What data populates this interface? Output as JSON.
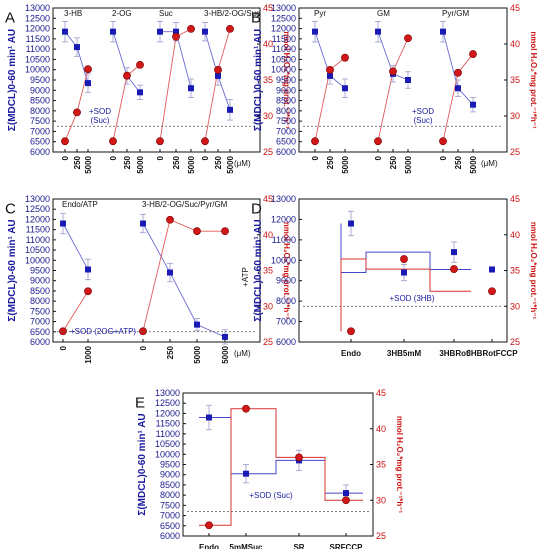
{
  "style": {
    "blue": "#1a1ab4",
    "red": "#d01818",
    "frame": "#111111",
    "ref_line": "#555555"
  },
  "axes_text": {
    "left_ylabel": "Σ(MDCL)0-60 min¹ AU",
    "right_ylabel": "nmol H₂O₂*mg prot.⁻¹*h⁻¹",
    "unit_um": "(μM)"
  },
  "chart_data": [
    {
      "type": "line",
      "panel": "A",
      "left_ylim": [
        6000,
        13000
      ],
      "left_ticks": [
        6000,
        6500,
        7000,
        7500,
        8000,
        8500,
        9000,
        9500,
        10000,
        10500,
        11000,
        11500,
        12000,
        12500,
        13000
      ],
      "right_ylim": [
        25,
        45
      ],
      "right_ticks": [
        25,
        30,
        35,
        40,
        45
      ],
      "groups": [
        {
          "label": "3-HB",
          "x": [
            "0",
            "250",
            "5000"
          ],
          "mdcl": [
            11850,
            11100,
            9350
          ],
          "mdcl_err": [
            500,
            450,
            450
          ],
          "h2o2": [
            26.5,
            30.5,
            36.5
          ]
        },
        {
          "label": "2-OG",
          "x": [
            "0",
            "250",
            "5000"
          ],
          "mdcl": [
            11850,
            9700,
            8900
          ],
          "mdcl_err": [
            500,
            400,
            350
          ],
          "h2o2": [
            26.5,
            35.6,
            37.1
          ]
        },
        {
          "label": "Suc",
          "x": [
            "0",
            "250",
            "5000"
          ],
          "mdcl": [
            11850,
            11850,
            9100
          ],
          "mdcl_err": [
            500,
            450,
            450
          ],
          "h2o2": [
            26.5,
            41.0,
            42.1
          ]
        },
        {
          "label": "3-HB/2-OG/Suc",
          "x": [
            "0",
            "250",
            "5000"
          ],
          "mdcl": [
            11850,
            9700,
            8050
          ],
          "mdcl_err": [
            450,
            450,
            500
          ],
          "h2o2": [
            26.5,
            36.4,
            42.1
          ]
        }
      ],
      "ref": {
        "value": 7250,
        "label": "+SOD\n(Suc)"
      },
      "unit_label": "(μM)"
    },
    {
      "type": "line",
      "panel": "B",
      "left_ylim": [
        6000,
        13000
      ],
      "left_ticks": [
        6000,
        6500,
        7000,
        7500,
        8000,
        8500,
        9000,
        9500,
        10000,
        10500,
        11000,
        11500,
        12000,
        12500,
        13000
      ],
      "right_ylim": [
        25,
        45
      ],
      "right_ticks": [
        25,
        30,
        35,
        40,
        45
      ],
      "groups": [
        {
          "label": "Pyr",
          "x": [
            "0",
            "250",
            "5000"
          ],
          "mdcl": [
            11850,
            9700,
            9100
          ],
          "mdcl_err": [
            500,
            400,
            450
          ],
          "h2o2": [
            26.5,
            36.4,
            38.1
          ]
        },
        {
          "label": "GM",
          "x": [
            "0",
            "250",
            "5000"
          ],
          "mdcl": [
            11850,
            9800,
            9500
          ],
          "mdcl_err": [
            500,
            400,
            400
          ],
          "h2o2": [
            26.5,
            36.2,
            40.8
          ]
        },
        {
          "label": "Pyr/GM",
          "x": [
            "0",
            "250",
            "5000"
          ],
          "mdcl": [
            11850,
            9100,
            8300
          ],
          "mdcl_err": [
            500,
            400,
            350
          ],
          "h2o2": [
            26.5,
            36.0,
            38.6
          ]
        }
      ],
      "ref": {
        "value": 7250,
        "label": "+SOD\n(Suc)"
      },
      "unit_label": "(μM)"
    },
    {
      "type": "line",
      "panel": "C",
      "left_ylim": [
        6000,
        13000
      ],
      "left_ticks": [
        6000,
        6500,
        7000,
        7500,
        8000,
        8500,
        9000,
        9500,
        10000,
        10500,
        11000,
        11500,
        12000,
        12500,
        13000
      ],
      "right_ylim": [
        25,
        45
      ],
      "right_ticks": [
        25,
        30,
        35,
        40,
        45
      ],
      "groups": [
        {
          "label": "Endo/ATP",
          "x": [
            "0",
            "1000"
          ],
          "mdcl": [
            11800,
            9550
          ],
          "mdcl_err": [
            500,
            500
          ],
          "h2o2": [
            26.5,
            32.1
          ]
        },
        {
          "label": "3-HB/2-OG/Suc/Pyr/GM",
          "x": [
            "0",
            "250",
            "5000",
            "5000"
          ],
          "mdcl": [
            11800,
            9400,
            6850,
            6250
          ],
          "mdcl_err": [
            450,
            450,
            300,
            350
          ],
          "h2o2": [
            26.5,
            42.1,
            40.5,
            40.5
          ]
        }
      ],
      "ref": {
        "value": 6500,
        "label": "+SOD (2OG+ATP)"
      },
      "side_label": "+ATP",
      "unit_label": "(μM)"
    },
    {
      "type": "step",
      "panel": "D",
      "categories": [
        "Endo",
        "3HB5mM",
        "3HBRot",
        "3HBRotFCCP"
      ],
      "left_ylim": [
        6000,
        13000
      ],
      "left_ticks": [
        6000,
        7000,
        8000,
        9000,
        10000,
        11000,
        12000,
        13000
      ],
      "right_ylim": [
        25,
        45
      ],
      "right_ticks": [
        25,
        30,
        35,
        40,
        45
      ],
      "mdcl": [
        11800,
        9400,
        10400,
        9550
      ],
      "mdcl_err": [
        600,
        400,
        500,
        0
      ],
      "h2o2": [
        26.5,
        36.6,
        35.2,
        32.1
      ],
      "ref": {
        "value": 7750,
        "label": "+SOD (3HB)"
      }
    },
    {
      "type": "step",
      "panel": "E",
      "categories": [
        "Endo",
        "5mMSuc",
        "SR",
        "SRFCCP"
      ],
      "left_ylim": [
        6000,
        13000
      ],
      "left_ticks": [
        6000,
        6500,
        7000,
        7500,
        8000,
        8500,
        9000,
        9500,
        10000,
        10500,
        11000,
        11500,
        12000,
        12500,
        13000
      ],
      "right_ylim": [
        25,
        45
      ],
      "right_ticks": [
        25,
        30,
        35,
        40,
        45
      ],
      "mdcl": [
        11800,
        9050,
        9700,
        8100
      ],
      "mdcl_err": [
        600,
        450,
        500,
        400
      ],
      "h2o2": [
        26.5,
        42.8,
        36.0,
        30.0
      ],
      "ref": {
        "value": 7200,
        "label": "+SOD (Suc)"
      }
    }
  ]
}
